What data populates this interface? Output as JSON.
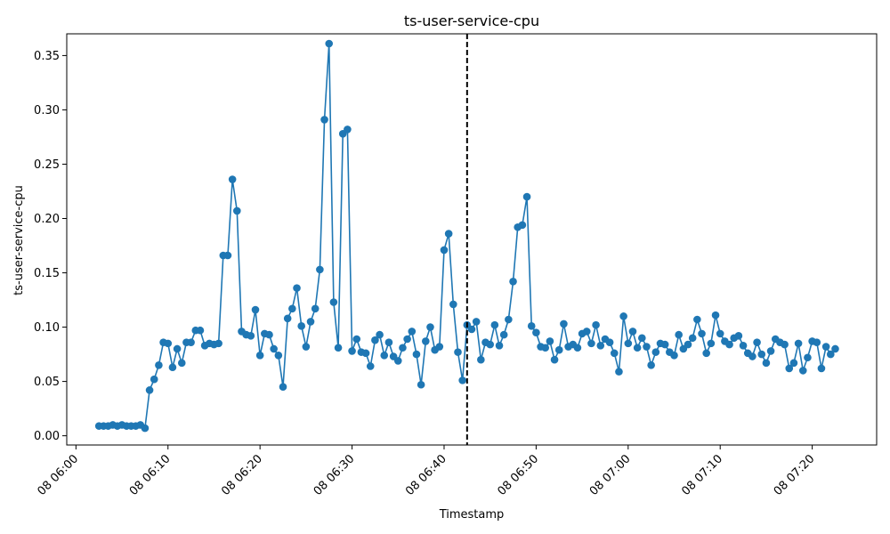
{
  "chart_data": {
    "type": "line",
    "title": "ts-user-service-cpu",
    "xlabel": "Timestamp",
    "ylabel": "ts-user-service-cpu",
    "xlim": [
      "2000-01-08T05:59:00",
      "2000-01-08T07:27:00"
    ],
    "ylim": [
      -0.0085,
      0.37
    ],
    "grid": false,
    "legend": "none",
    "color": "#1f77b4",
    "marker": "circle",
    "x_ticks": [
      {
        "t": "2000-01-08T06:00:00",
        "label": "08 06:00"
      },
      {
        "t": "2000-01-08T06:10:00",
        "label": "08 06:10"
      },
      {
        "t": "2000-01-08T06:20:00",
        "label": "08 06:20"
      },
      {
        "t": "2000-01-08T06:30:00",
        "label": "08 06:30"
      },
      {
        "t": "2000-01-08T06:40:00",
        "label": "08 06:40"
      },
      {
        "t": "2000-01-08T06:50:00",
        "label": "08 06:50"
      },
      {
        "t": "2000-01-08T07:00:00",
        "label": "08 07:00"
      },
      {
        "t": "2000-01-08T07:10:00",
        "label": "08 07:10"
      },
      {
        "t": "2000-01-08T07:20:00",
        "label": "08 07:20"
      }
    ],
    "y_ticks": [
      "0.00",
      "0.05",
      "0.10",
      "0.15",
      "0.20",
      "0.25",
      "0.30",
      "0.35"
    ],
    "vline": {
      "t": "2000-01-08T06:42:30",
      "style": "dashed",
      "color": "#000000"
    },
    "series": [
      {
        "start": "2000-01-08T06:02:30",
        "interval_seconds": 30,
        "values": [
          0.009,
          0.009,
          0.009,
          0.01,
          0.009,
          0.01,
          0.009,
          0.009,
          0.009,
          0.01,
          0.007,
          0.042,
          0.052,
          0.065,
          0.086,
          0.085,
          0.063,
          0.08,
          0.067,
          0.086,
          0.086,
          0.097,
          0.097,
          0.083,
          0.085,
          0.084,
          0.085,
          0.166,
          0.166,
          0.236,
          0.207,
          0.096,
          0.093,
          0.092,
          0.116,
          0.074,
          0.094,
          0.093,
          0.08,
          0.074,
          0.045,
          0.108,
          0.117,
          0.136,
          0.101,
          0.082,
          0.105,
          0.117,
          0.153,
          0.291,
          0.361,
          0.123,
          0.081,
          0.278,
          0.282,
          0.078,
          0.089,
          0.077,
          0.076,
          0.064,
          0.088,
          0.093,
          0.074,
          0.086,
          0.073,
          0.069,
          0.081,
          0.089,
          0.096,
          0.075,
          0.047,
          0.087,
          0.1,
          0.079,
          0.082,
          0.171,
          0.186,
          0.121,
          0.077,
          0.051,
          0.102,
          0.098,
          0.105,
          0.07,
          0.086,
          0.084,
          0.102,
          0.083,
          0.093,
          0.107,
          0.142,
          0.192,
          0.194,
          0.22,
          0.101,
          0.095,
          0.082,
          0.081,
          0.087,
          0.07,
          0.079,
          0.103,
          0.082,
          0.084,
          0.081,
          0.094,
          0.096,
          0.085,
          0.102,
          0.083,
          0.089,
          0.086,
          0.076,
          0.059,
          0.11,
          0.085,
          0.096,
          0.081,
          0.09,
          0.082,
          0.065,
          0.077,
          0.085,
          0.084,
          0.077,
          0.074,
          0.093,
          0.08,
          0.084,
          0.09,
          0.107,
          0.094,
          0.076,
          0.085,
          0.111,
          0.094,
          0.087,
          0.084,
          0.09,
          0.092,
          0.083,
          0.076,
          0.073,
          0.086,
          0.075,
          0.067,
          0.078,
          0.089,
          0.086,
          0.084,
          0.062,
          0.067,
          0.085,
          0.06,
          0.072,
          0.087,
          0.086,
          0.062,
          0.082,
          0.075,
          0.08
        ]
      }
    ]
  }
}
